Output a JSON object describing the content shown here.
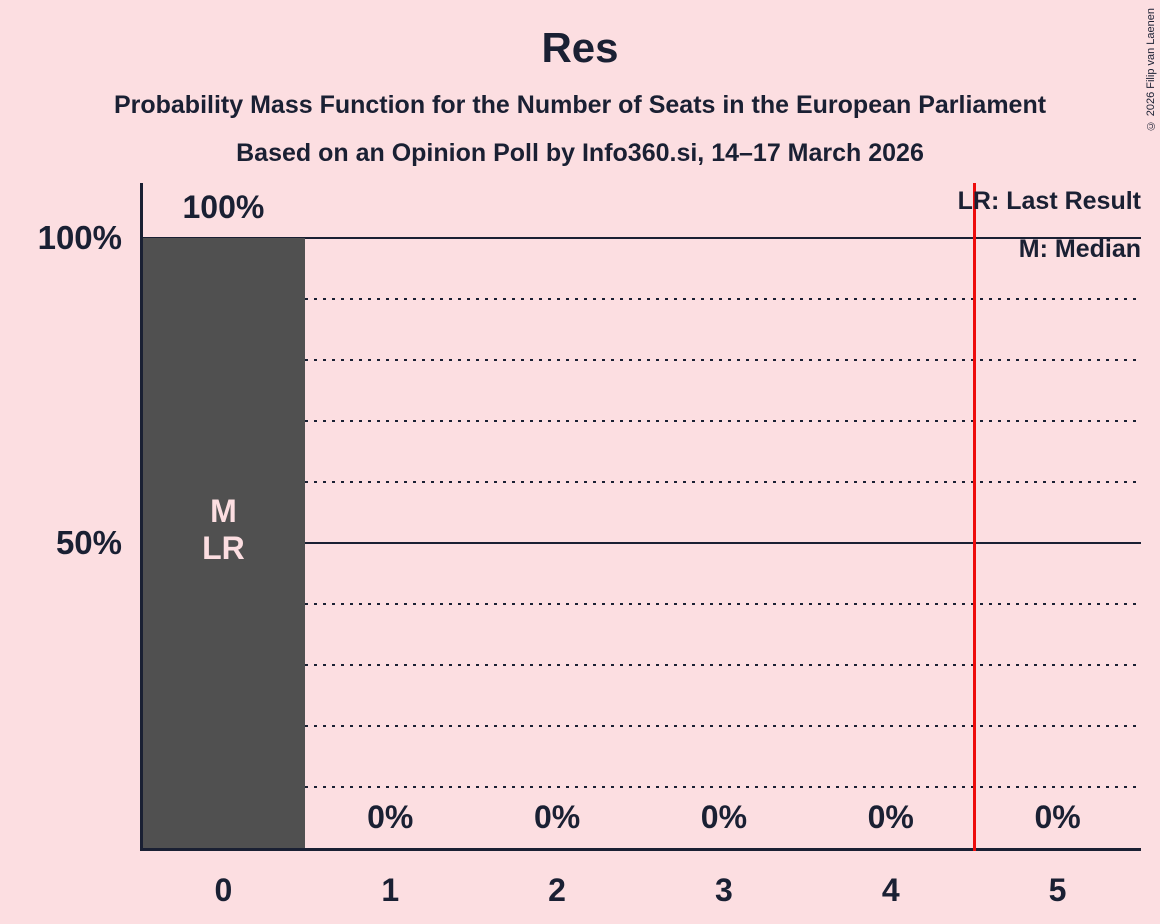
{
  "copyright": "© 2026 Filip van Laenen",
  "colors": {
    "background": "#fcdee1",
    "bar": "#505050",
    "text": "#1a2033",
    "red_line": "#ed0c0c"
  },
  "legend": {
    "lr": "LR: Last Result",
    "m": "M: Median"
  },
  "chart_data": {
    "type": "bar",
    "title": "Res",
    "subtitle": "Probability Mass Function for the Number of Seats in the European Parliament",
    "poll_info": "Based on an Opinion Poll by Info360.si, 14–17 March 2026",
    "categories": [
      "0",
      "1",
      "2",
      "3",
      "4",
      "5"
    ],
    "values": [
      100,
      0,
      0,
      0,
      0,
      0
    ],
    "value_labels": [
      "100%",
      "0%",
      "0%",
      "0%",
      "0%",
      "0%"
    ],
    "y_ticks": [
      {
        "value": 100,
        "label": "100%"
      },
      {
        "value": 50,
        "label": "50%"
      }
    ],
    "ylim": [
      0,
      109
    ],
    "solid_gridlines": [
      100,
      50
    ],
    "dotted_gridlines": [
      90,
      80,
      70,
      60,
      40,
      30,
      20,
      10
    ],
    "bar_annotation": {
      "category_index": 0,
      "lines": [
        "M",
        "LR"
      ]
    },
    "median_category": "0",
    "last_result_category": "0",
    "red_line_x": 4.5,
    "legend_entries": [
      "LR: Last Result",
      "M: Median"
    ],
    "legend_position": "top-right",
    "grid": true
  }
}
